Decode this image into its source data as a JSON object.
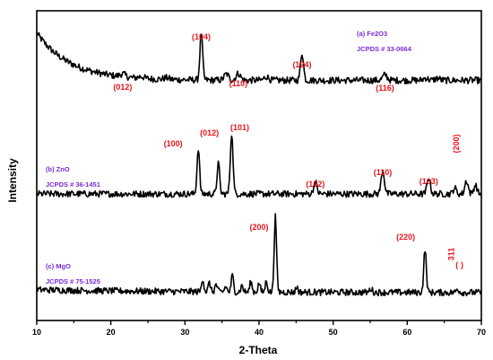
{
  "chart_data": {
    "type": "line",
    "title": "",
    "xlabel": "2-Theta",
    "ylabel": "Intensity",
    "xlim": [
      10,
      70
    ],
    "xticks": [
      10,
      20,
      30,
      40,
      50,
      60,
      70
    ],
    "yticks_shown": false,
    "grid": false,
    "series": [
      {
        "name": "(a) Fe2O3",
        "reference": "JCPDS # 33-0664",
        "baseline_level": 0.25,
        "background": {
          "start": 1.55,
          "decay_deg": 4.5
        },
        "peaks": [
          {
            "x": 21.6,
            "h": 0.1,
            "w": 0.35
          },
          {
            "x": 24.1,
            "h": 0.06,
            "w": 0.35
          },
          {
            "x": 27.5,
            "h": 0.05,
            "w": 0.35
          },
          {
            "x": 32.2,
            "h": 1.55,
            "w": 0.18
          },
          {
            "x": 35.6,
            "h": 0.2,
            "w": 0.3
          },
          {
            "x": 37.2,
            "h": 0.22,
            "w": 0.3
          },
          {
            "x": 41.0,
            "h": 0.12,
            "w": 0.3
          },
          {
            "x": 45.8,
            "h": 0.9,
            "w": 0.2
          },
          {
            "x": 57.0,
            "h": 0.18,
            "w": 0.3
          },
          {
            "x": 62.5,
            "h": 0.08,
            "w": 0.3
          },
          {
            "x": 64.1,
            "h": 0.07,
            "w": 0.3
          }
        ],
        "labels": [
          {
            "text": "(012)",
            "x": 21.6
          },
          {
            "text": "(104)",
            "x": 32.2
          },
          {
            "text": "(110)",
            "x": 37.2
          },
          {
            "text": "(124)",
            "x": 45.8
          },
          {
            "text": "(116)",
            "x": 57.0
          }
        ]
      },
      {
        "name": "(b) ZnO",
        "reference": "JCPDS # 36-1451",
        "baseline_level": 0.0,
        "background": {
          "start": 0.0,
          "decay_deg": 1.0
        },
        "peaks": [
          {
            "x": 31.8,
            "h": 1.55,
            "w": 0.17
          },
          {
            "x": 34.5,
            "h": 1.05,
            "w": 0.17
          },
          {
            "x": 36.3,
            "h": 2.05,
            "w": 0.18
          },
          {
            "x": 47.6,
            "h": 0.4,
            "w": 0.22
          },
          {
            "x": 56.7,
            "h": 0.8,
            "w": 0.22
          },
          {
            "x": 62.9,
            "h": 0.55,
            "w": 0.22
          },
          {
            "x": 66.4,
            "h": 0.2,
            "w": 0.22
          },
          {
            "x": 68.0,
            "h": 0.45,
            "w": 0.22
          },
          {
            "x": 69.2,
            "h": 0.3,
            "w": 0.22
          }
        ],
        "labels": [
          {
            "text": "(100)",
            "x": 31.8
          },
          {
            "text": "(012)",
            "x": 34.5
          },
          {
            "text": "(101)",
            "x": 36.3
          },
          {
            "text": "(102)",
            "x": 47.6
          },
          {
            "text": "(110)",
            "x": 56.7
          },
          {
            "text": "(103)",
            "x": 62.9
          },
          {
            "text": "(200)",
            "x": 67.0,
            "rotated": true
          }
        ]
      },
      {
        "name": "(c) MgO",
        "reference": "JCPDS # 75-1525",
        "baseline_level": 0.0,
        "background": {
          "start": 0.1,
          "decay_deg": 20.0
        },
        "peaks": [
          {
            "x": 32.4,
            "h": 0.45,
            "w": 0.15
          },
          {
            "x": 33.3,
            "h": 0.3,
            "w": 0.15
          },
          {
            "x": 34.2,
            "h": 0.25,
            "w": 0.15
          },
          {
            "x": 35.5,
            "h": 0.18,
            "w": 0.15
          },
          {
            "x": 36.4,
            "h": 0.55,
            "w": 0.15
          },
          {
            "x": 37.7,
            "h": 0.22,
            "w": 0.15
          },
          {
            "x": 38.9,
            "h": 0.35,
            "w": 0.15
          },
          {
            "x": 40.0,
            "h": 0.3,
            "w": 0.15
          },
          {
            "x": 41.0,
            "h": 0.38,
            "w": 0.15
          },
          {
            "x": 42.2,
            "h": 2.55,
            "w": 0.16
          },
          {
            "x": 45.1,
            "h": 0.18,
            "w": 0.15
          },
          {
            "x": 55.1,
            "h": 0.12,
            "w": 0.18
          },
          {
            "x": 62.4,
            "h": 1.45,
            "w": 0.17
          },
          {
            "x": 66.8,
            "h": 0.12,
            "w": 0.18
          }
        ],
        "labels": [
          {
            "text": "(200)",
            "x": 42.2
          },
          {
            "text": "(220)",
            "x": 62.4
          },
          {
            "text": "311",
            "x": 66.3,
            "rotated": true
          },
          {
            "text": "(",
            "x": 66.7
          },
          {
            "text": ")",
            "x": 67.4
          }
        ]
      }
    ],
    "legend": "none"
  }
}
